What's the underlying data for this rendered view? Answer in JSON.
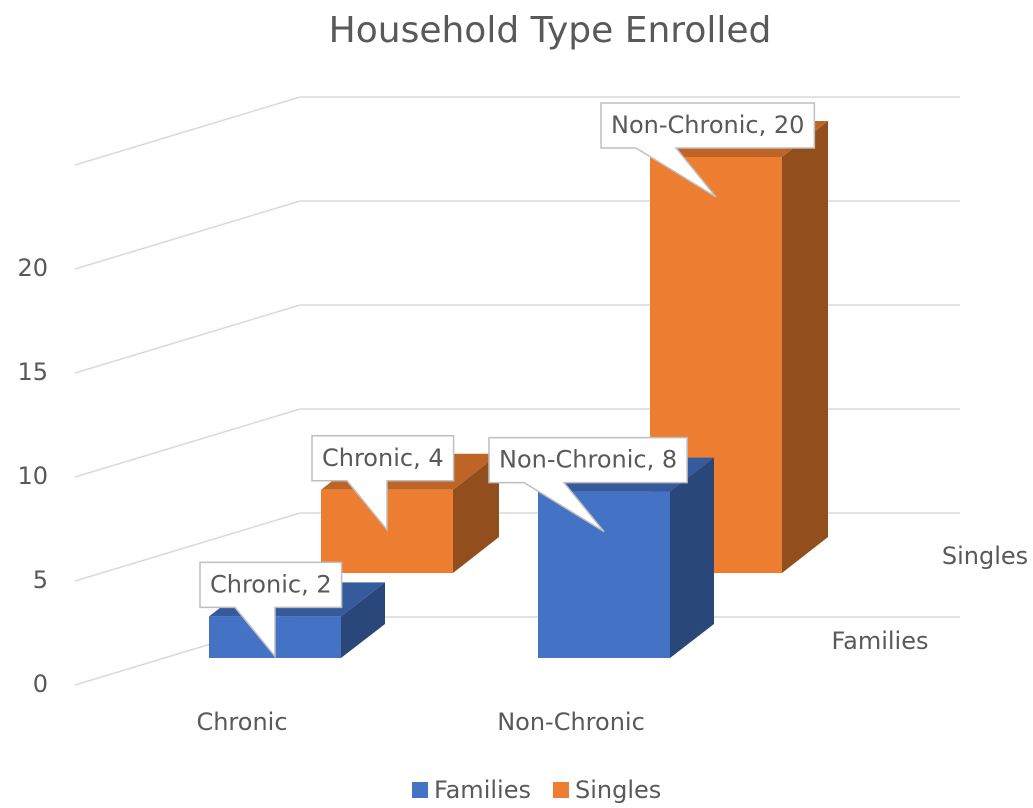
{
  "chart_data": {
    "type": "bar3d",
    "title": "Household Type Enrolled",
    "categories": [
      "Chronic",
      "Non-Chronic"
    ],
    "series": [
      {
        "name": "Families",
        "color": "#4472c4",
        "values": [
          2,
          8
        ],
        "value_labels": [
          "Chronic, 2",
          "Non-Chronic, 8"
        ]
      },
      {
        "name": "Singles",
        "color": "#ed7d31",
        "values": [
          4,
          20
        ],
        "value_labels": [
          "Chronic, 4",
          "Non-Chronic, 20"
        ]
      }
    ],
    "ylim": [
      0,
      25
    ],
    "yticks": [
      0,
      5,
      10,
      15,
      20
    ],
    "grid": true,
    "legend": "bottom"
  }
}
